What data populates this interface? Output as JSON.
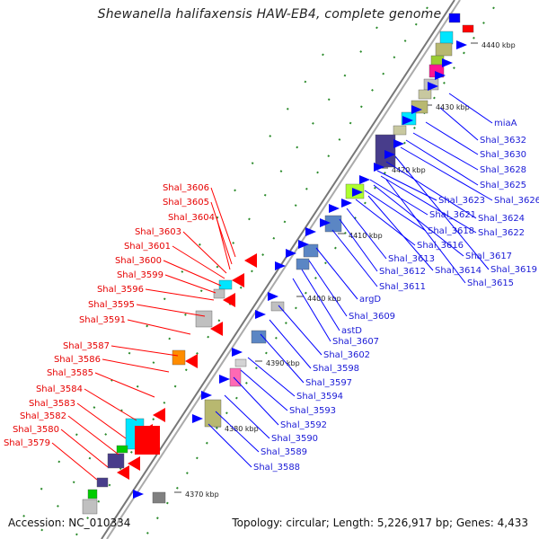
{
  "title": "Shewanella halifaxensis HAW-EB4, complete genome",
  "accession": "Accession: NC_010334",
  "topology": "Topology: circular; Length: 5,226,917 bp; Genes: 4,433",
  "colors": {
    "forward_genes": "#0000ff",
    "reverse_genes": "#ff0000",
    "forward_labels": "#1a1ad6",
    "reverse_labels": "#e60000",
    "backbone": "#888888",
    "gc_dots": "#2a8a2a"
  },
  "ticks": [
    "4370 kbp",
    "4380 kbp",
    "4390 kbp",
    "4400 kbp",
    "4410 kbp",
    "4420 kbp",
    "4430 kbp",
    "4440 kbp"
  ],
  "left_labels": [
    "Shal_3606",
    "Shal_3605",
    "Shal_3604",
    "Shal_3603",
    "Shal_3601",
    "Shal_3600",
    "Shal_3599",
    "Shal_3596",
    "Shal_3595",
    "Shal_3591",
    "Shal_3587",
    "Shal_3586",
    "Shal_3585",
    "Shal_3584",
    "Shal_3583",
    "Shal_3582",
    "Shal_3580",
    "Shal_3579"
  ],
  "right_labels": [
    "miaA",
    "Shal_3632",
    "Shal_3630",
    "Shal_3628",
    "Shal_3625",
    "Shal_3626",
    "Shal_3623",
    "Shal_3621",
    "Shal_3624",
    "Shal_3618",
    "Shal_3622",
    "Shal_3616",
    "Shal_3613",
    "Shal_3617",
    "Shal_3612",
    "Shal_3614",
    "Shal_3619",
    "Shal_3615",
    "Shal_3611",
    "argD",
    "Shal_3609",
    "astD",
    "Shal_3607",
    "Shal_3602",
    "Shal_3598",
    "Shal_3597",
    "Shal_3594",
    "Shal_3593",
    "Shal_3592",
    "Shal_3590",
    "Shal_3589",
    "Shal_3588"
  ]
}
